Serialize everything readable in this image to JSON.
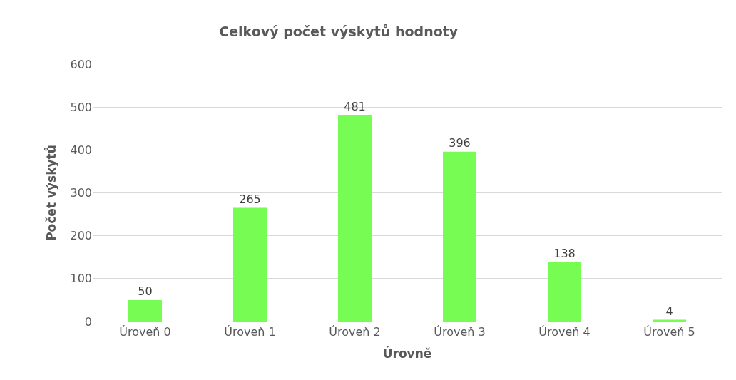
{
  "chart_data": {
    "type": "bar",
    "title": "Celkový počet výskytů hodnoty",
    "xlabel": "Úrovně",
    "ylabel": "Počet výskytů",
    "categories": [
      "Úroveň 0",
      "Úroveň 1",
      "Úroveň 2",
      "Úroveň 3",
      "Úroveň 4",
      "Úroveň 5"
    ],
    "values": [
      50,
      265,
      481,
      396,
      138,
      4
    ],
    "color": "#77fc53",
    "ylim": [
      0,
      600
    ],
    "yticks": [
      0,
      100,
      200,
      300,
      400,
      500,
      600
    ],
    "grid": "y",
    "data_labels": true
  }
}
